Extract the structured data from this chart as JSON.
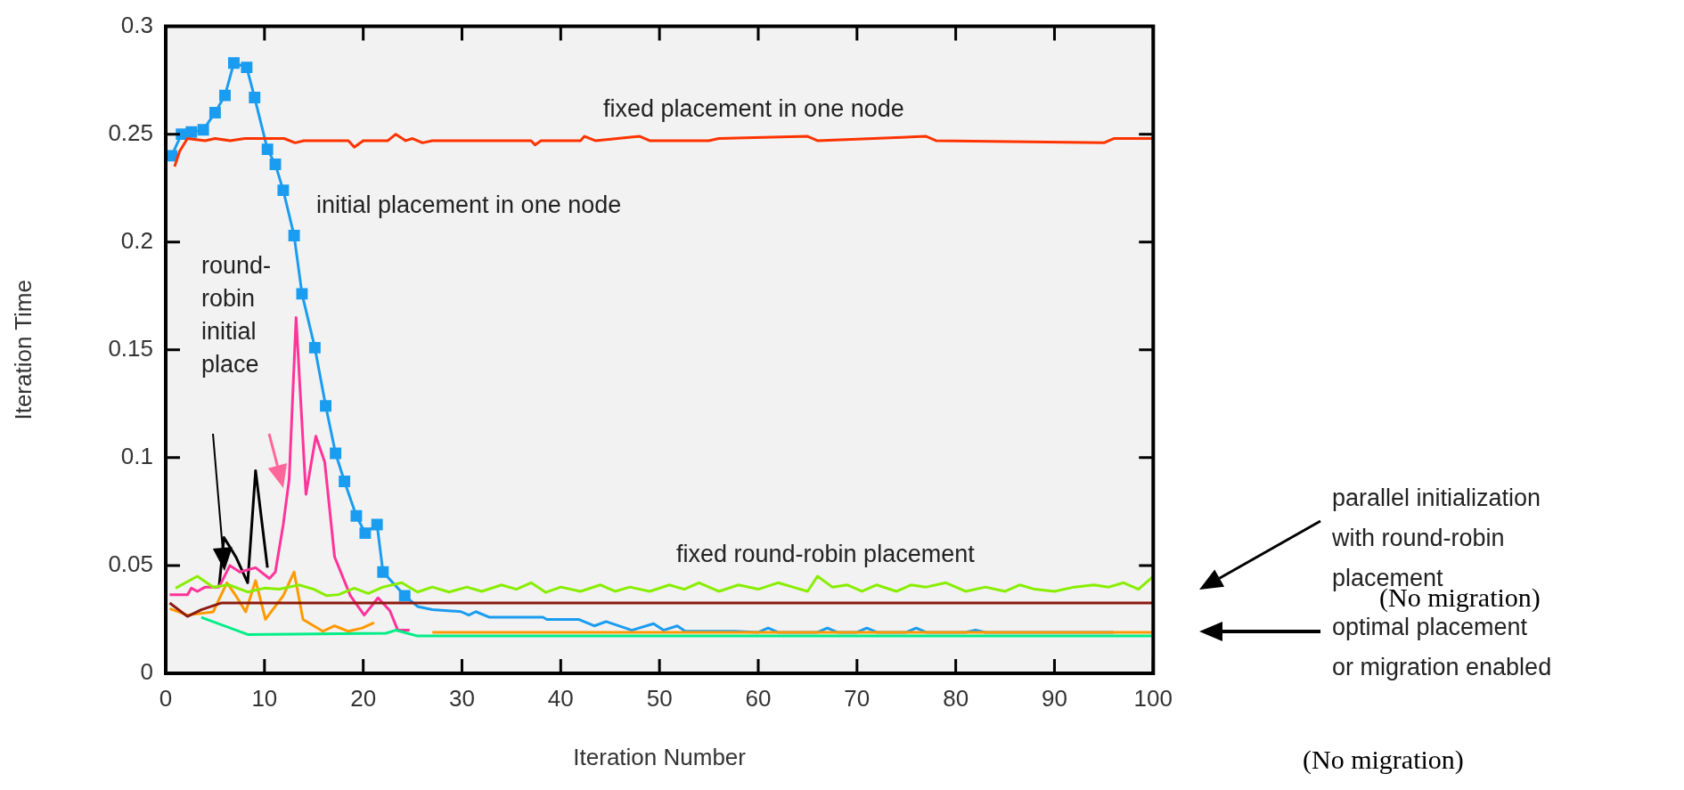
{
  "chart_data": {
    "type": "line",
    "xlabel": "Iteration Number",
    "ylabel": "Iteration Time",
    "xlim": [
      0,
      100
    ],
    "ylim": [
      0,
      0.3
    ],
    "xticks": [
      0,
      10,
      20,
      30,
      40,
      50,
      60,
      70,
      80,
      90,
      100
    ],
    "yticks": [
      0,
      0.05,
      0.1,
      0.15,
      0.2,
      0.25,
      0.3
    ],
    "series": [
      {
        "color": "#ff3300",
        "marker": "none",
        "x": [
          0.9,
          1.4,
          2.2,
          4,
          5,
          6.5,
          8,
          10,
          12,
          13.1,
          14,
          18.5,
          19.1,
          20,
          22.5,
          23.3,
          24.3,
          25,
          26,
          27,
          37,
          37.4,
          38,
          42,
          42.4,
          43.5,
          48,
          49,
          55,
          56,
          65,
          66,
          77,
          78,
          95,
          96,
          100
        ],
        "values": [
          0.235,
          0.242,
          0.248,
          0.247,
          0.248,
          0.247,
          0.248,
          0.248,
          0.248,
          0.246,
          0.247,
          0.247,
          0.244,
          0.247,
          0.247,
          0.25,
          0.247,
          0.248,
          0.246,
          0.247,
          0.247,
          0.245,
          0.247,
          0.247,
          0.249,
          0.247,
          0.249,
          0.247,
          0.247,
          0.248,
          0.249,
          0.247,
          0.249,
          0.247,
          0.246,
          0.248,
          0.248
        ]
      },
      {
        "color": "#88ee00",
        "marker": "none",
        "x": [
          1,
          3.2,
          4.8,
          6.4,
          8.3,
          10,
          11.5,
          13.5,
          15,
          16.3,
          17.5,
          19.1,
          20.5,
          22,
          23.9,
          25.5,
          27,
          28.7,
          30.5,
          32,
          34,
          35.5,
          37,
          38.5,
          40,
          42,
          44,
          45.5,
          47,
          49,
          51,
          52.5,
          54,
          56,
          58,
          60,
          62,
          63.5,
          65,
          66,
          67.5,
          69,
          70.5,
          72,
          74,
          75.5,
          77,
          79,
          81,
          83,
          85,
          86.5,
          88,
          90,
          92,
          94,
          95.5,
          97,
          98.5,
          100
        ],
        "values": [
          0.0395,
          0.045,
          0.04,
          0.041,
          0.0377,
          0.0395,
          0.039,
          0.041,
          0.039,
          0.036,
          0.0365,
          0.0395,
          0.037,
          0.04,
          0.042,
          0.0377,
          0.04,
          0.0377,
          0.04,
          0.038,
          0.041,
          0.039,
          0.042,
          0.0375,
          0.04,
          0.038,
          0.041,
          0.038,
          0.04,
          0.038,
          0.041,
          0.039,
          0.042,
          0.038,
          0.041,
          0.039,
          0.042,
          0.04,
          0.038,
          0.045,
          0.04,
          0.041,
          0.038,
          0.041,
          0.038,
          0.041,
          0.04,
          0.042,
          0.038,
          0.04,
          0.038,
          0.041,
          0.039,
          0.038,
          0.04,
          0.041,
          0.04,
          0.042,
          0.039,
          0.045
        ]
      },
      {
        "color": "#8b1a10",
        "marker": "none",
        "x": [
          0.4,
          2.2,
          3.6,
          5.6,
          100
        ],
        "values": [
          0.0326,
          0.0264,
          0.0295,
          0.0326,
          0.0326
        ]
      },
      {
        "color": "#ff9900",
        "marker": "none",
        "x": [
          0.4,
          2.2,
          4.8,
          6.2,
          7.1,
          8.1,
          9.1,
          10.1,
          11.9,
          13,
          13.9,
          15.9,
          17.1,
          18.5,
          19.9,
          21.1,
          24,
          27,
          100
        ],
        "values": [
          0.03,
          0.027,
          0.0285,
          0.042,
          0.036,
          0.0285,
          0.043,
          0.025,
          0.036,
          0.047,
          0.025,
          0.0195,
          0.022,
          0.0195,
          0.021,
          0.0235,
          null,
          0.019,
          0.019
        ]
      },
      {
        "color": "#00ee88",
        "marker": "none",
        "x": [
          3.6,
          8.3,
          22.3,
          23.3,
          25.5,
          100
        ],
        "values": [
          0.026,
          0.018,
          0.0186,
          0.02,
          0.0173,
          0.0173
        ]
      },
      {
        "color": "#ff3399",
        "marker": "none",
        "x": [
          0.4,
          2.2,
          2.6,
          3.2,
          4,
          5.4,
          6.5,
          7.5,
          9.1,
          10.5,
          11.1,
          11.9,
          12.5,
          13.2,
          14.2,
          15.2,
          16.1,
          17.1,
          18.7,
          20.1,
          21.5,
          22.7,
          23.5,
          24.7
        ],
        "values": [
          0.0364,
          0.0364,
          0.0395,
          0.038,
          0.04,
          0.04,
          0.05,
          0.047,
          0.049,
          0.044,
          0.047,
          0.069,
          0.09,
          0.165,
          0.083,
          0.11,
          0.098,
          0.054,
          0.036,
          0.027,
          0.035,
          0.029,
          0.02,
          0.02
        ]
      },
      {
        "color": "#000000",
        "marker": "none",
        "x": [
          5.4,
          5.9,
          7.1,
          8.3,
          9.1,
          10.3
        ],
        "values": [
          0.04,
          0.063,
          0.054,
          0.042,
          0.094,
          0.049
        ]
      },
      {
        "color": "#1a9cf0",
        "marker": "square",
        "x": [
          0.6,
          1.6,
          2.6,
          3.8,
          5,
          6,
          6.9,
          8.2,
          9,
          10.3,
          11.1,
          11.9,
          13,
          13.8,
          15.1,
          16.2,
          17.2,
          18.1,
          19.3,
          20.2,
          21.4,
          22,
          24.2
        ],
        "values": [
          0.24,
          0.25,
          0.251,
          0.252,
          0.26,
          0.268,
          0.283,
          0.281,
          0.267,
          0.243,
          0.236,
          0.224,
          0.203,
          0.176,
          0.151,
          0.124,
          0.102,
          0.089,
          0.073,
          0.065,
          0.069,
          0.047,
          0.036
        ]
      },
      {
        "color": "#1a9cf0",
        "marker": "none",
        "x": [
          24.2,
          25.5,
          27,
          29.9,
          30.7,
          31.4,
          32.8,
          38.2,
          38.6,
          41.8,
          43.4,
          44.6,
          47.2,
          49.4,
          50.4,
          51.8,
          52.6,
          57.7,
          60,
          61,
          62,
          66,
          67,
          68,
          70,
          71,
          72,
          75,
          76,
          77,
          81,
          82,
          83,
          95,
          96
        ],
        "values": [
          0.036,
          0.031,
          0.0295,
          0.0286,
          0.027,
          0.0286,
          0.026,
          0.026,
          0.025,
          0.025,
          0.022,
          0.024,
          0.02,
          0.023,
          0.02,
          0.022,
          0.0195,
          0.0195,
          0.019,
          0.021,
          0.019,
          0.019,
          0.021,
          0.019,
          0.019,
          0.021,
          0.019,
          0.019,
          0.021,
          0.019,
          0.019,
          0.02,
          0.019,
          0.019,
          0.019
        ]
      }
    ],
    "annotations": [
      "fixed placement in one node",
      "initial placement in one node",
      "round-\nrobin\ninitial\nplace",
      "fixed round-robin placement",
      "parallel initialization\nwith round-robin\nplacement",
      "(No migration)",
      "optimal placement\nor migration enabled",
      "(No migration)"
    ]
  }
}
